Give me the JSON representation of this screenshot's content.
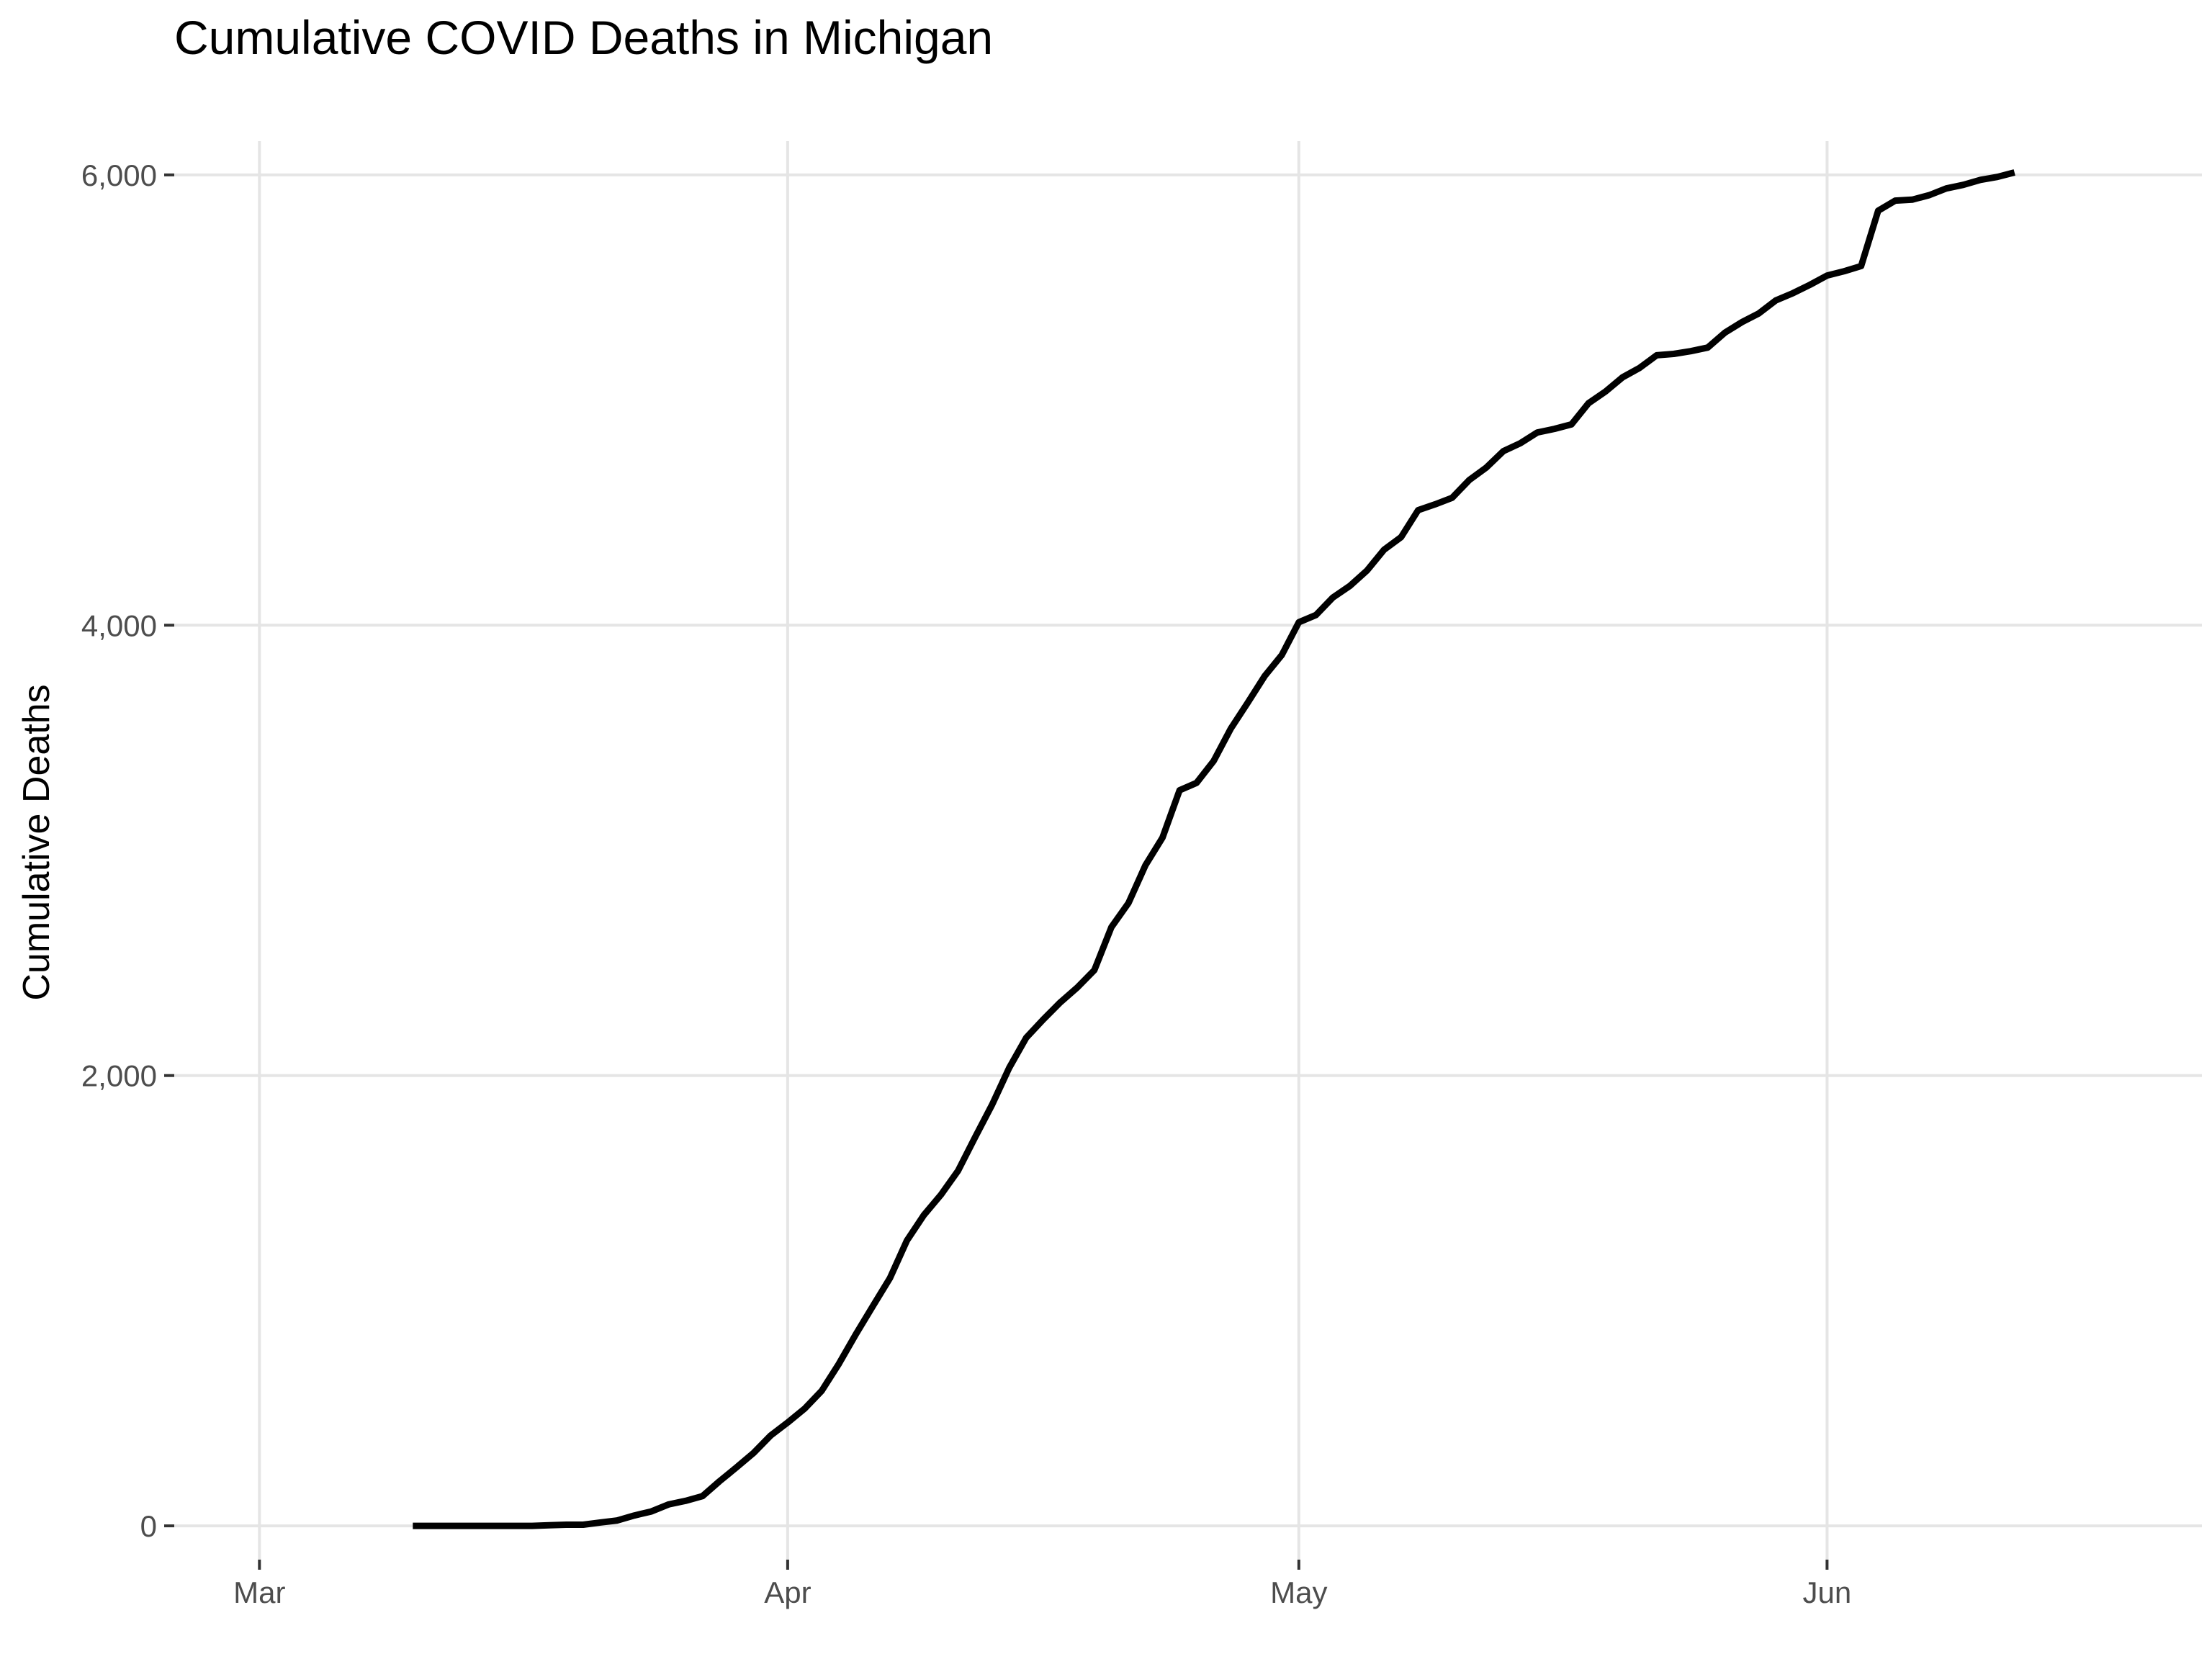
{
  "chart_data": {
    "type": "line",
    "title": "Cumulative COVID Deaths in Michigan",
    "xlabel": "",
    "ylabel": "Cumulative Deaths",
    "ylim": [
      -150,
      6150
    ],
    "xlim": [
      "2020-02-25",
      "2020-06-23"
    ],
    "grid": true,
    "x_ticks": [
      {
        "date": "2020-03-01",
        "label": "Mar"
      },
      {
        "date": "2020-04-01",
        "label": "Apr"
      },
      {
        "date": "2020-05-01",
        "label": "May"
      },
      {
        "date": "2020-06-01",
        "label": "Jun"
      }
    ],
    "y_ticks": [
      {
        "value": 0,
        "label": "0"
      },
      {
        "value": 2000,
        "label": "2,000"
      },
      {
        "value": 4000,
        "label": "4,000"
      },
      {
        "value": 6000,
        "label": "6,000"
      }
    ],
    "series": [
      {
        "color": "#000000",
        "x": [
          "2020-03-10",
          "2020-03-11",
          "2020-03-12",
          "2020-03-13",
          "2020-03-14",
          "2020-03-15",
          "2020-03-16",
          "2020-03-17",
          "2020-03-18",
          "2020-03-19",
          "2020-03-20",
          "2020-03-21",
          "2020-03-22",
          "2020-03-23",
          "2020-03-24",
          "2020-03-25",
          "2020-03-26",
          "2020-03-27",
          "2020-03-28",
          "2020-03-29",
          "2020-03-30",
          "2020-03-31",
          "2020-04-01",
          "2020-04-02",
          "2020-04-03",
          "2020-04-04",
          "2020-04-05",
          "2020-04-06",
          "2020-04-07",
          "2020-04-08",
          "2020-04-09",
          "2020-04-10",
          "2020-04-11",
          "2020-04-12",
          "2020-04-13",
          "2020-04-14",
          "2020-04-15",
          "2020-04-16",
          "2020-04-17",
          "2020-04-18",
          "2020-04-19",
          "2020-04-20",
          "2020-04-21",
          "2020-04-22",
          "2020-04-23",
          "2020-04-24",
          "2020-04-25",
          "2020-04-26",
          "2020-04-27",
          "2020-04-28",
          "2020-04-29",
          "2020-04-30",
          "2020-05-01",
          "2020-05-02",
          "2020-05-03",
          "2020-05-04",
          "2020-05-05",
          "2020-05-06",
          "2020-05-07",
          "2020-05-08",
          "2020-05-09",
          "2020-05-10",
          "2020-05-11",
          "2020-05-12",
          "2020-05-13",
          "2020-05-14",
          "2020-05-15",
          "2020-05-16",
          "2020-05-17",
          "2020-05-18",
          "2020-05-19",
          "2020-05-20",
          "2020-05-21",
          "2020-05-22",
          "2020-05-23",
          "2020-05-24",
          "2020-05-25",
          "2020-05-26",
          "2020-05-27",
          "2020-05-28",
          "2020-05-29",
          "2020-05-30",
          "2020-05-31",
          "2020-06-01",
          "2020-06-02",
          "2020-06-03",
          "2020-06-04",
          "2020-06-05",
          "2020-06-06",
          "2020-06-07",
          "2020-06-08",
          "2020-06-09",
          "2020-06-10",
          "2020-06-11",
          "2020-06-12"
        ],
        "values": [
          0,
          0,
          0,
          0,
          0,
          0,
          0,
          0,
          3,
          5,
          5,
          15,
          24,
          46,
          64,
          95,
          111,
          132,
          198,
          260,
          324,
          401,
          459,
          521,
          600,
          719,
          851,
          976,
          1100,
          1267,
          1381,
          1471,
          1577,
          1726,
          1871,
          2034,
          2168,
          2249,
          2325,
          2391,
          2468,
          2659,
          2766,
          2934,
          3057,
          3267,
          3300,
          3397,
          3540,
          3656,
          3775,
          3868,
          4013,
          4045,
          4123,
          4175,
          4243,
          4335,
          4391,
          4511,
          4537,
          4566,
          4645,
          4700,
          4773,
          4808,
          4856,
          4872,
          4892,
          4986,
          5038,
          5101,
          5143,
          5199,
          5205,
          5217,
          5233,
          5299,
          5346,
          5385,
          5443,
          5475,
          5512,
          5553,
          5572,
          5595,
          5841,
          5886,
          5890,
          5910,
          5940,
          5956,
          5978,
          5991,
          6011
        ]
      }
    ]
  }
}
